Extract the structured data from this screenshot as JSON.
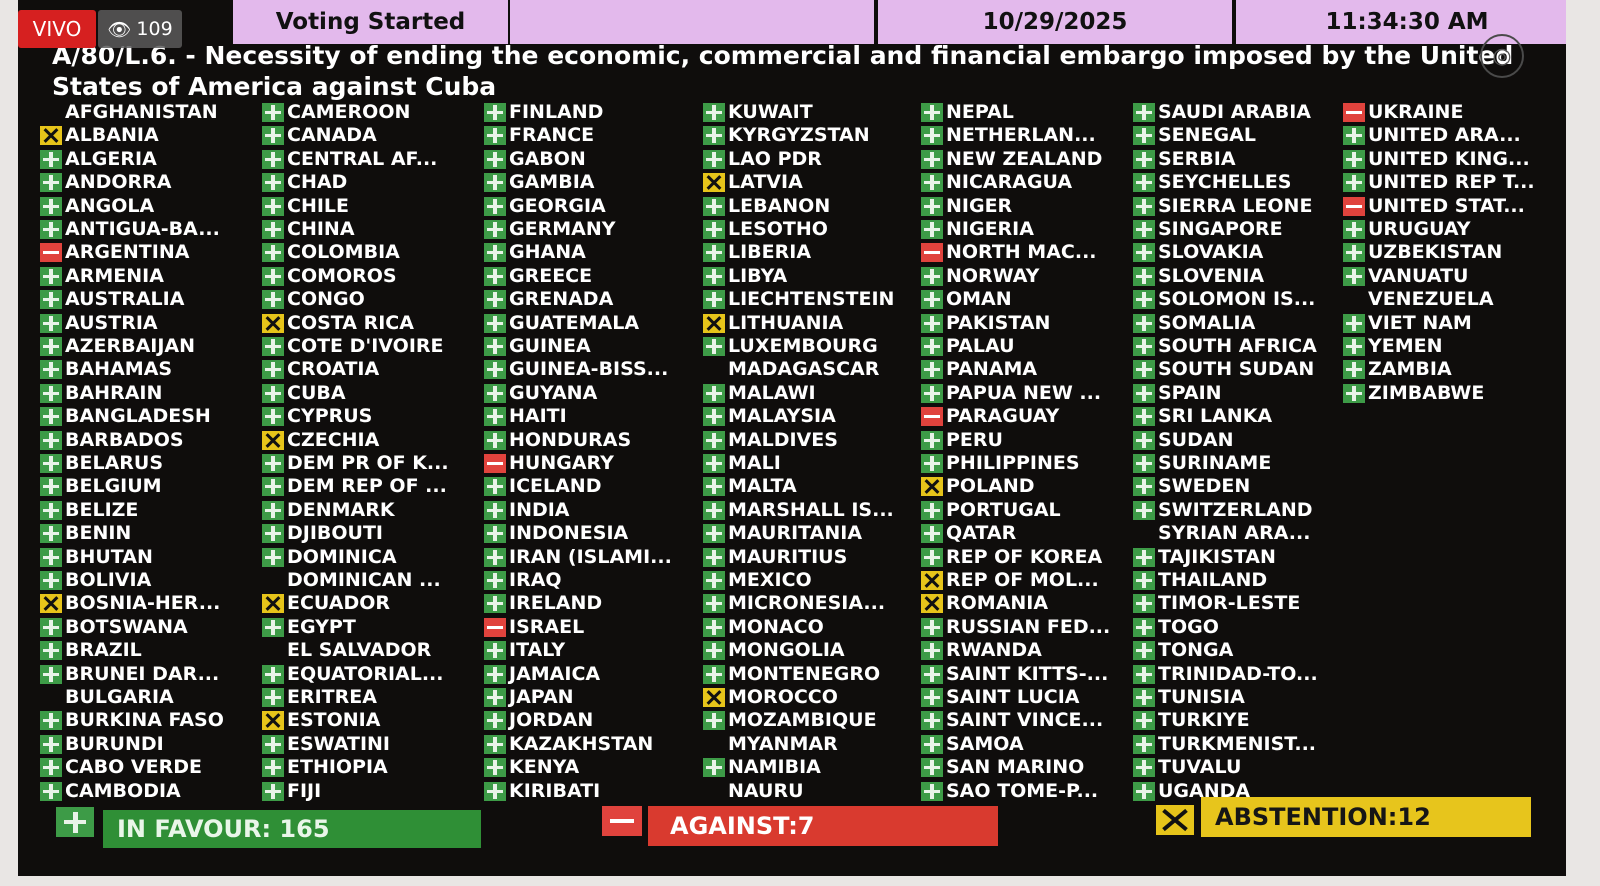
{
  "overlay": {
    "live_label": "VIVO",
    "views": "109"
  },
  "header": {
    "status": "Voting Started",
    "date": "10/29/2025",
    "time": "11:34:30 AM"
  },
  "title": "A/80/L.6. - Necessity of ending the economic, commercial and financial embargo imposed by the United States of America against Cuba",
  "columns": [
    [
      {
        "name": "AFGHANISTAN",
        "vote": "none"
      },
      {
        "name": "ALBANIA",
        "vote": "abstention"
      },
      {
        "name": "ALGERIA",
        "vote": "yes"
      },
      {
        "name": "ANDORRA",
        "vote": "yes"
      },
      {
        "name": "ANGOLA",
        "vote": "yes"
      },
      {
        "name": "ANTIGUA-BA...",
        "vote": "yes"
      },
      {
        "name": "ARGENTINA",
        "vote": "no"
      },
      {
        "name": "ARMENIA",
        "vote": "yes"
      },
      {
        "name": "AUSTRALIA",
        "vote": "yes"
      },
      {
        "name": "AUSTRIA",
        "vote": "yes"
      },
      {
        "name": "AZERBAIJAN",
        "vote": "yes"
      },
      {
        "name": "BAHAMAS",
        "vote": "yes"
      },
      {
        "name": "BAHRAIN",
        "vote": "yes"
      },
      {
        "name": "BANGLADESH",
        "vote": "yes"
      },
      {
        "name": "BARBADOS",
        "vote": "yes"
      },
      {
        "name": "BELARUS",
        "vote": "yes"
      },
      {
        "name": "BELGIUM",
        "vote": "yes"
      },
      {
        "name": "BELIZE",
        "vote": "yes"
      },
      {
        "name": "BENIN",
        "vote": "yes"
      },
      {
        "name": "BHUTAN",
        "vote": "yes"
      },
      {
        "name": "BOLIVIA",
        "vote": "yes"
      },
      {
        "name": "BOSNIA-HER...",
        "vote": "abstention"
      },
      {
        "name": "BOTSWANA",
        "vote": "yes"
      },
      {
        "name": "BRAZIL",
        "vote": "yes"
      },
      {
        "name": "BRUNEI DAR...",
        "vote": "yes"
      },
      {
        "name": "BULGARIA",
        "vote": "none"
      },
      {
        "name": "BURKINA FASO",
        "vote": "yes"
      },
      {
        "name": "BURUNDI",
        "vote": "yes"
      },
      {
        "name": "CABO VERDE",
        "vote": "yes"
      },
      {
        "name": "CAMBODIA",
        "vote": "yes"
      }
    ],
    [
      {
        "name": "CAMEROON",
        "vote": "yes"
      },
      {
        "name": "CANADA",
        "vote": "yes"
      },
      {
        "name": "CENTRAL AF...",
        "vote": "yes"
      },
      {
        "name": "CHAD",
        "vote": "yes"
      },
      {
        "name": "CHILE",
        "vote": "yes"
      },
      {
        "name": "CHINA",
        "vote": "yes"
      },
      {
        "name": "COLOMBIA",
        "vote": "yes"
      },
      {
        "name": "COMOROS",
        "vote": "yes"
      },
      {
        "name": "CONGO",
        "vote": "yes"
      },
      {
        "name": "COSTA RICA",
        "vote": "abstention"
      },
      {
        "name": "COTE D'IVOIRE",
        "vote": "yes"
      },
      {
        "name": "CROATIA",
        "vote": "yes"
      },
      {
        "name": "CUBA",
        "vote": "yes"
      },
      {
        "name": "CYPRUS",
        "vote": "yes"
      },
      {
        "name": "CZECHIA",
        "vote": "abstention"
      },
      {
        "name": "DEM PR OF K...",
        "vote": "yes"
      },
      {
        "name": "DEM REP OF ...",
        "vote": "yes"
      },
      {
        "name": "DENMARK",
        "vote": "yes"
      },
      {
        "name": "DJIBOUTI",
        "vote": "yes"
      },
      {
        "name": "DOMINICA",
        "vote": "yes"
      },
      {
        "name": "DOMINICAN ...",
        "vote": "none"
      },
      {
        "name": "ECUADOR",
        "vote": "abstention"
      },
      {
        "name": "EGYPT",
        "vote": "yes"
      },
      {
        "name": "EL SALVADOR",
        "vote": "none"
      },
      {
        "name": "EQUATORIAL...",
        "vote": "yes"
      },
      {
        "name": "ERITREA",
        "vote": "yes"
      },
      {
        "name": "ESTONIA",
        "vote": "abstention"
      },
      {
        "name": "ESWATINI",
        "vote": "yes"
      },
      {
        "name": "ETHIOPIA",
        "vote": "yes"
      },
      {
        "name": "FIJI",
        "vote": "yes"
      }
    ],
    [
      {
        "name": "FINLAND",
        "vote": "yes"
      },
      {
        "name": "FRANCE",
        "vote": "yes"
      },
      {
        "name": "GABON",
        "vote": "yes"
      },
      {
        "name": "GAMBIA",
        "vote": "yes"
      },
      {
        "name": "GEORGIA",
        "vote": "yes"
      },
      {
        "name": "GERMANY",
        "vote": "yes"
      },
      {
        "name": "GHANA",
        "vote": "yes"
      },
      {
        "name": "GREECE",
        "vote": "yes"
      },
      {
        "name": "GRENADA",
        "vote": "yes"
      },
      {
        "name": "GUATEMALA",
        "vote": "yes"
      },
      {
        "name": "GUINEA",
        "vote": "yes"
      },
      {
        "name": "GUINEA-BISS...",
        "vote": "yes"
      },
      {
        "name": "GUYANA",
        "vote": "yes"
      },
      {
        "name": "HAITI",
        "vote": "yes"
      },
      {
        "name": "HONDURAS",
        "vote": "yes"
      },
      {
        "name": "HUNGARY",
        "vote": "no"
      },
      {
        "name": "ICELAND",
        "vote": "yes"
      },
      {
        "name": "INDIA",
        "vote": "yes"
      },
      {
        "name": "INDONESIA",
        "vote": "yes"
      },
      {
        "name": "IRAN (ISLAMI...",
        "vote": "yes"
      },
      {
        "name": "IRAQ",
        "vote": "yes"
      },
      {
        "name": "IRELAND",
        "vote": "yes"
      },
      {
        "name": "ISRAEL",
        "vote": "no"
      },
      {
        "name": "ITALY",
        "vote": "yes"
      },
      {
        "name": "JAMAICA",
        "vote": "yes"
      },
      {
        "name": "JAPAN",
        "vote": "yes"
      },
      {
        "name": "JORDAN",
        "vote": "yes"
      },
      {
        "name": "KAZAKHSTAN",
        "vote": "yes"
      },
      {
        "name": "KENYA",
        "vote": "yes"
      },
      {
        "name": "KIRIBATI",
        "vote": "yes"
      }
    ],
    [
      {
        "name": "KUWAIT",
        "vote": "yes"
      },
      {
        "name": "KYRGYZSTAN",
        "vote": "yes"
      },
      {
        "name": "LAO PDR",
        "vote": "yes"
      },
      {
        "name": "LATVIA",
        "vote": "abstention"
      },
      {
        "name": "LEBANON",
        "vote": "yes"
      },
      {
        "name": "LESOTHO",
        "vote": "yes"
      },
      {
        "name": "LIBERIA",
        "vote": "yes"
      },
      {
        "name": "LIBYA",
        "vote": "yes"
      },
      {
        "name": "LIECHTENSTEIN",
        "vote": "yes"
      },
      {
        "name": "LITHUANIA",
        "vote": "abstention"
      },
      {
        "name": "LUXEMBOURG",
        "vote": "yes"
      },
      {
        "name": "MADAGASCAR",
        "vote": "none"
      },
      {
        "name": "MALAWI",
        "vote": "yes"
      },
      {
        "name": "MALAYSIA",
        "vote": "yes"
      },
      {
        "name": "MALDIVES",
        "vote": "yes"
      },
      {
        "name": "MALI",
        "vote": "yes"
      },
      {
        "name": "MALTA",
        "vote": "yes"
      },
      {
        "name": "MARSHALL IS...",
        "vote": "yes"
      },
      {
        "name": "MAURITANIA",
        "vote": "yes"
      },
      {
        "name": "MAURITIUS",
        "vote": "yes"
      },
      {
        "name": "MEXICO",
        "vote": "yes"
      },
      {
        "name": "MICRONESIA...",
        "vote": "yes"
      },
      {
        "name": "MONACO",
        "vote": "yes"
      },
      {
        "name": "MONGOLIA",
        "vote": "yes"
      },
      {
        "name": "MONTENEGRO",
        "vote": "yes"
      },
      {
        "name": "MOROCCO",
        "vote": "abstention"
      },
      {
        "name": "MOZAMBIQUE",
        "vote": "yes"
      },
      {
        "name": "MYANMAR",
        "vote": "none"
      },
      {
        "name": "NAMIBIA",
        "vote": "yes"
      },
      {
        "name": "NAURU",
        "vote": "none"
      }
    ],
    [
      {
        "name": "NEPAL",
        "vote": "yes"
      },
      {
        "name": "NETHERLAN...",
        "vote": "yes"
      },
      {
        "name": "NEW ZEALAND",
        "vote": "yes"
      },
      {
        "name": "NICARAGUA",
        "vote": "yes"
      },
      {
        "name": "NIGER",
        "vote": "yes"
      },
      {
        "name": "NIGERIA",
        "vote": "yes"
      },
      {
        "name": "NORTH MAC...",
        "vote": "no"
      },
      {
        "name": "NORWAY",
        "vote": "yes"
      },
      {
        "name": "OMAN",
        "vote": "yes"
      },
      {
        "name": "PAKISTAN",
        "vote": "yes"
      },
      {
        "name": "PALAU",
        "vote": "yes"
      },
      {
        "name": "PANAMA",
        "vote": "yes"
      },
      {
        "name": "PAPUA NEW ...",
        "vote": "yes"
      },
      {
        "name": "PARAGUAY",
        "vote": "no"
      },
      {
        "name": "PERU",
        "vote": "yes"
      },
      {
        "name": "PHILIPPINES",
        "vote": "yes"
      },
      {
        "name": "POLAND",
        "vote": "abstention"
      },
      {
        "name": "PORTUGAL",
        "vote": "yes"
      },
      {
        "name": "QATAR",
        "vote": "yes"
      },
      {
        "name": "REP OF KOREA",
        "vote": "yes"
      },
      {
        "name": "REP OF MOL...",
        "vote": "abstention"
      },
      {
        "name": "ROMANIA",
        "vote": "abstention"
      },
      {
        "name": "RUSSIAN FED...",
        "vote": "yes"
      },
      {
        "name": "RWANDA",
        "vote": "yes"
      },
      {
        "name": "SAINT KITTS-...",
        "vote": "yes"
      },
      {
        "name": "SAINT LUCIA",
        "vote": "yes"
      },
      {
        "name": "SAINT VINCE...",
        "vote": "yes"
      },
      {
        "name": "SAMOA",
        "vote": "yes"
      },
      {
        "name": "SAN MARINO",
        "vote": "yes"
      },
      {
        "name": "SAO TOME-P...",
        "vote": "yes"
      }
    ],
    [
      {
        "name": "SAUDI ARABIA",
        "vote": "yes"
      },
      {
        "name": "SENEGAL",
        "vote": "yes"
      },
      {
        "name": "SERBIA",
        "vote": "yes"
      },
      {
        "name": "SEYCHELLES",
        "vote": "yes"
      },
      {
        "name": "SIERRA LEONE",
        "vote": "yes"
      },
      {
        "name": "SINGAPORE",
        "vote": "yes"
      },
      {
        "name": "SLOVAKIA",
        "vote": "yes"
      },
      {
        "name": "SLOVENIA",
        "vote": "yes"
      },
      {
        "name": "SOLOMON IS...",
        "vote": "yes"
      },
      {
        "name": "SOMALIA",
        "vote": "yes"
      },
      {
        "name": "SOUTH AFRICA",
        "vote": "yes"
      },
      {
        "name": "SOUTH SUDAN",
        "vote": "yes"
      },
      {
        "name": "SPAIN",
        "vote": "yes"
      },
      {
        "name": "SRI LANKA",
        "vote": "yes"
      },
      {
        "name": "SUDAN",
        "vote": "yes"
      },
      {
        "name": "SURINAME",
        "vote": "yes"
      },
      {
        "name": "SWEDEN",
        "vote": "yes"
      },
      {
        "name": "SWITZERLAND",
        "vote": "yes"
      },
      {
        "name": "SYRIAN ARA...",
        "vote": "none"
      },
      {
        "name": "TAJIKISTAN",
        "vote": "yes"
      },
      {
        "name": "THAILAND",
        "vote": "yes"
      },
      {
        "name": "TIMOR-LESTE",
        "vote": "yes"
      },
      {
        "name": "TOGO",
        "vote": "yes"
      },
      {
        "name": "TONGA",
        "vote": "yes"
      },
      {
        "name": "TRINIDAD-TO...",
        "vote": "yes"
      },
      {
        "name": "TUNISIA",
        "vote": "yes"
      },
      {
        "name": "TURKIYE",
        "vote": "yes"
      },
      {
        "name": "TURKMENIST...",
        "vote": "yes"
      },
      {
        "name": "TUVALU",
        "vote": "yes"
      },
      {
        "name": "UGANDA",
        "vote": "yes"
      }
    ],
    [
      {
        "name": "UKRAINE",
        "vote": "no"
      },
      {
        "name": "UNITED ARA...",
        "vote": "yes"
      },
      {
        "name": "UNITED KING...",
        "vote": "yes"
      },
      {
        "name": "UNITED REP T...",
        "vote": "yes"
      },
      {
        "name": "UNITED STAT...",
        "vote": "no"
      },
      {
        "name": "URUGUAY",
        "vote": "yes"
      },
      {
        "name": "UZBEKISTAN",
        "vote": "yes"
      },
      {
        "name": "VANUATU",
        "vote": "yes"
      },
      {
        "name": "VENEZUELA",
        "vote": "none"
      },
      {
        "name": "VIET NAM",
        "vote": "yes"
      },
      {
        "name": "YEMEN",
        "vote": "yes"
      },
      {
        "name": "ZAMBIA",
        "vote": "yes"
      },
      {
        "name": "ZIMBABWE",
        "vote": "yes"
      }
    ]
  ],
  "totals": {
    "in_favour": "IN FAVOUR: 165",
    "against": "AGAINST:7",
    "abstention": "ABSTENTION:12"
  },
  "colors": {
    "yes": "#3d9b47",
    "no": "#e0433d",
    "abstention": "#e6c41a",
    "header_bar": "#e3b9ec",
    "board_bg": "#0f0d0c"
  }
}
